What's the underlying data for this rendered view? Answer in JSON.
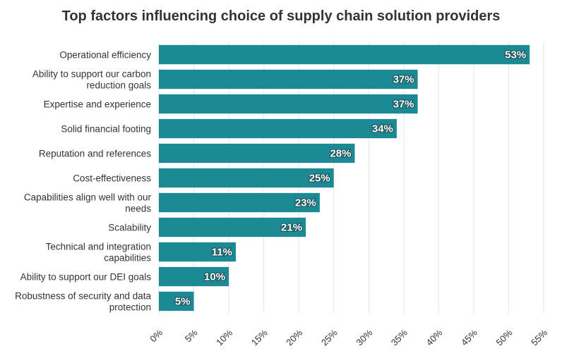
{
  "chart_data": {
    "type": "bar",
    "orientation": "horizontal",
    "title": "Top factors influencing choice of supply chain solution providers",
    "xlabel": "",
    "ylabel": "",
    "categories": [
      "Operational efficiency",
      "Ability to support our carbon reduction goals",
      "Expertise and experience",
      "Solid financial footing",
      "Reputation and references",
      "Cost-effectiveness",
      "Capabilities align well with our needs",
      "Scalability",
      "Technical and integration capabilities",
      "Ability to support our DEI goals",
      "Robustness of security and data protection"
    ],
    "category_lines": [
      [
        "Operational efficiency"
      ],
      [
        "Ability to support our carbon",
        "reduction goals"
      ],
      [
        "Expertise and experience"
      ],
      [
        "Solid financial footing"
      ],
      [
        "Reputation and references"
      ],
      [
        "Cost-effectiveness"
      ],
      [
        "Capabilities align well with our",
        "needs"
      ],
      [
        "Scalability"
      ],
      [
        "Technical and integration",
        "capabilities"
      ],
      [
        "Ability to support our DEI goals"
      ],
      [
        "Robustness of security and data",
        "protection"
      ]
    ],
    "values": [
      53,
      37,
      37,
      34,
      28,
      25,
      23,
      21,
      11,
      10,
      5
    ],
    "value_labels": [
      "53%",
      "37%",
      "37%",
      "34%",
      "28%",
      "25%",
      "23%",
      "21%",
      "11%",
      "10%",
      "5%"
    ],
    "xlim": [
      0,
      55
    ],
    "xticks": [
      0,
      5,
      10,
      15,
      20,
      25,
      30,
      35,
      40,
      45,
      50,
      55
    ],
    "xtick_labels": [
      "0%",
      "5%",
      "10%",
      "15%",
      "20%",
      "25%",
      "30%",
      "35%",
      "40%",
      "45%",
      "50%",
      "55%"
    ],
    "grid": true,
    "bar_color": "#1c8a94"
  }
}
